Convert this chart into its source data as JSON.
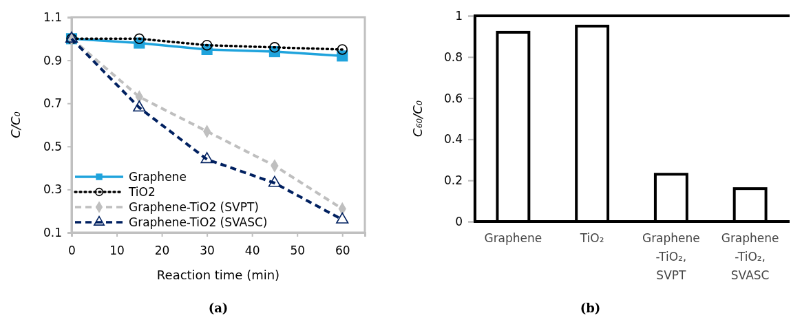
{
  "chart_data": [
    {
      "type": "line",
      "xlabel": "Reaction time (min)",
      "ylabel": "C/C₀",
      "x": [
        0,
        15,
        30,
        45,
        60
      ],
      "xlim": [
        0,
        65
      ],
      "xticks": [
        0,
        10,
        20,
        30,
        40,
        50,
        60
      ],
      "ylim": [
        0.1,
        1.1
      ],
      "yticks": [
        0.1,
        0.3,
        0.5,
        0.7,
        0.9,
        1.1
      ],
      "grid": false,
      "legend": "bottom left",
      "annotations": [
        "(a)"
      ],
      "series": [
        {
          "name": "Graphene",
          "color": "#1fa3dc",
          "values": [
            1,
            0.98,
            0.95,
            0.94,
            0.92
          ],
          "marker": "square",
          "line_style": "solid"
        },
        {
          "name": "TiO2",
          "color": "#000000",
          "values": [
            1,
            1.0,
            0.97,
            0.96,
            0.95
          ],
          "marker": "circle",
          "line_style": "dotted"
        },
        {
          "name": "Graphene-TiO2 (SVPT)",
          "color": "#bfbfbf",
          "values": [
            1,
            0.73,
            0.57,
            0.41,
            0.21
          ],
          "marker": "diamond",
          "line_style": "dashed"
        },
        {
          "name": "Graphene-TiO2 (SVASC)",
          "color": "#002060",
          "values": [
            1,
            0.68,
            0.44,
            0.33,
            0.16
          ],
          "marker": "triangle",
          "line_style": "dashed"
        }
      ]
    },
    {
      "type": "bar",
      "ylabel": "C₆₀/C₀",
      "categories": [
        "Graphene",
        "TiO₂",
        "Graphene-TiO₂, SVPT",
        "Graphene-TiO₂, SVASC"
      ],
      "values": [
        0.92,
        0.95,
        0.23,
        0.16
      ],
      "color": "#000000",
      "ylim": [
        0,
        1
      ],
      "yticks": [
        0,
        0.2,
        0.4,
        0.6,
        0.8,
        1
      ],
      "grid": false,
      "annotations": [
        "(b)"
      ]
    }
  ]
}
